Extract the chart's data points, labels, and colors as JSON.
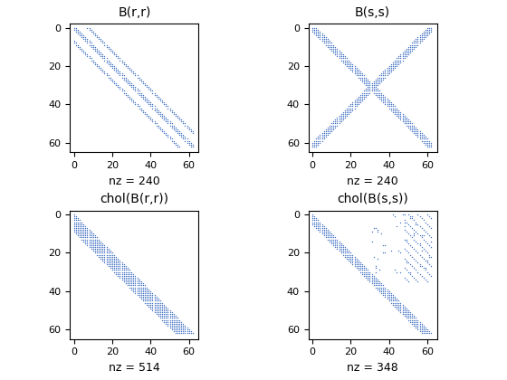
{
  "titles": [
    "B(r,r)",
    "B(s,s)",
    "chol(B(r,r))",
    "chol(B(s,s))"
  ],
  "xlabels": [
    "nz = 240",
    "nz = 240",
    "nz = 514",
    "nz = 348"
  ],
  "n": 63,
  "marker_color": "#4472c4",
  "marker_size": 2.0,
  "xlim": [
    -2,
    65
  ],
  "ylim": [
    65,
    -2
  ]
}
